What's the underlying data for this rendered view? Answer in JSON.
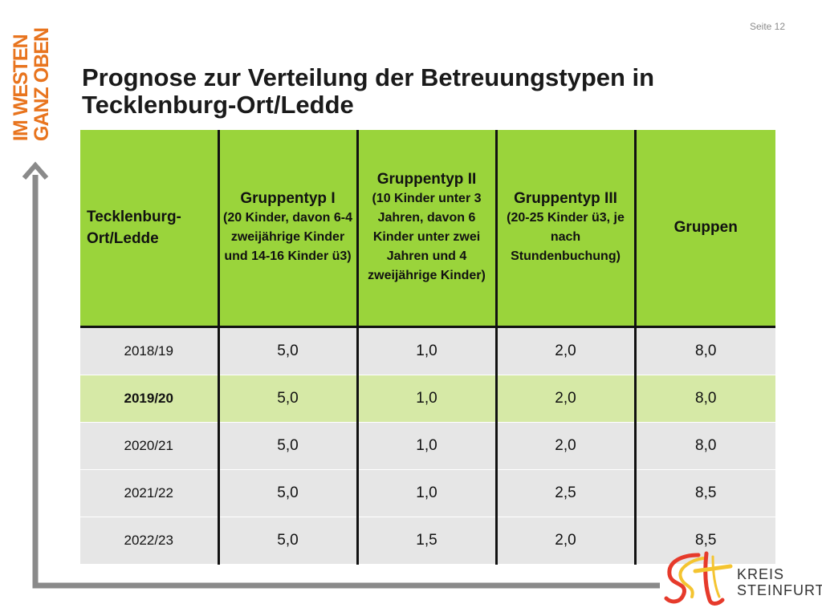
{
  "page_number": "Seite 12",
  "brand": {
    "line1": "IM WESTEN",
    "line2": "GANZ OBEN"
  },
  "title": {
    "line1": "Prognose zur Verteilung der Betreuungstypen in",
    "line2": "Tecklenburg-Ort/Ledde"
  },
  "table": {
    "headers": [
      {
        "main": "Tecklenburg-Ort/Ledde",
        "sub": ""
      },
      {
        "main": "Gruppentyp I",
        "sub": "(20 Kinder, davon 6-4 zweijährige Kinder und 14-16 Kinder ü3)"
      },
      {
        "main": "Gruppentyp II",
        "sub": "(10 Kinder unter 3 Jahren, davon 6 Kinder unter zwei Jahren und 4 zweijährige Kinder)"
      },
      {
        "main": "Gruppentyp III",
        "sub": "(20-25 Kinder ü3, je nach Stundenbuchung)"
      },
      {
        "main": "Gruppen",
        "sub": ""
      }
    ],
    "rows": [
      [
        "2018/19",
        "5,0",
        "1,0",
        "2,0",
        "8,0"
      ],
      [
        "2019/20",
        "5,0",
        "1,0",
        "2,0",
        "8,0"
      ],
      [
        "2020/21",
        "5,0",
        "1,0",
        "2,0",
        "8,0"
      ],
      [
        "2021/22",
        "5,0",
        "1,0",
        "2,5",
        "8,5"
      ],
      [
        "2022/23",
        "5,0",
        "1,5",
        "2,0",
        "8,5"
      ]
    ],
    "highlight_row": "2019/20"
  },
  "logo": {
    "line1": "KREIS",
    "line2": "STEINFURT"
  },
  "colors": {
    "accent_orange": "#e8741e",
    "header_green": "#9ad43b",
    "highlight_green": "#d6e9a6",
    "row_grey": "#e6e6e6",
    "axis_grey": "#8a8a8a"
  }
}
